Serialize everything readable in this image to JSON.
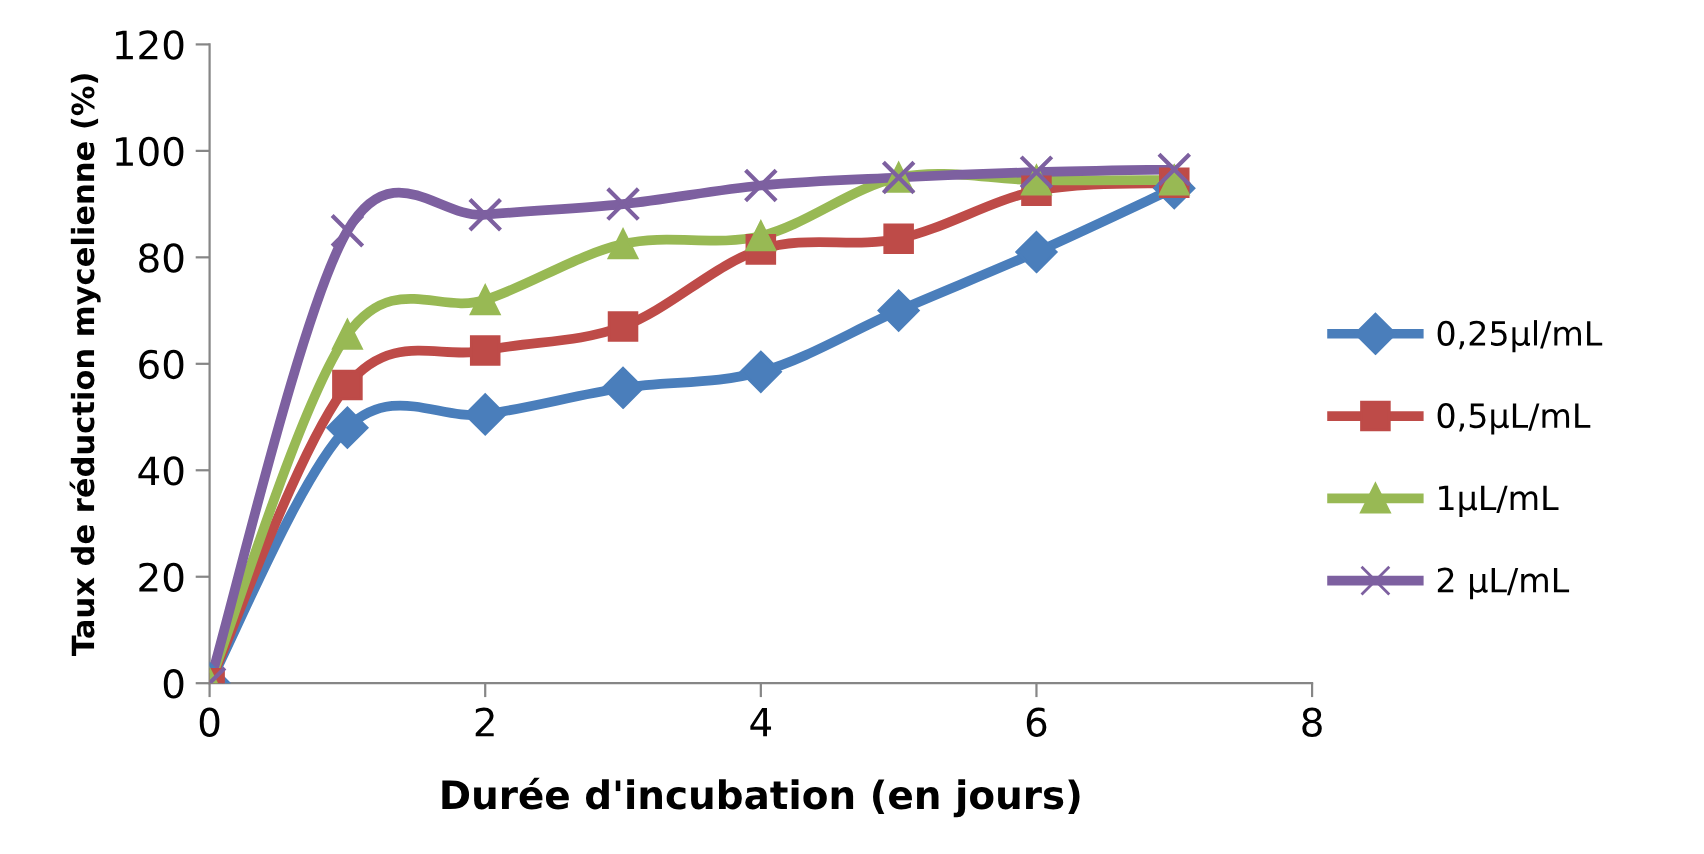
{
  "chart_data": {
    "type": "line",
    "xlabel": "Durée d'incubation (en jours)",
    "ylabel": "Taux de réduction mycelienne (%)",
    "x": [
      0,
      1,
      2,
      3,
      4,
      5,
      6,
      7
    ],
    "series": [
      {
        "name": "0,25µl/mL",
        "color": "#4a7ebb",
        "marker": "diamond",
        "values": [
          0,
          48,
          50.5,
          55.5,
          58.5,
          70,
          81,
          93
        ]
      },
      {
        "name": "0,5µL/mL",
        "color": "#be4b48",
        "marker": "square",
        "values": [
          0,
          56,
          62.5,
          67,
          81.5,
          83.5,
          92.5,
          94
        ]
      },
      {
        "name": "1µL/mL",
        "color": "#98b954",
        "marker": "triangle",
        "values": [
          0,
          65.5,
          72,
          82.5,
          84,
          95,
          94.5,
          94.5
        ]
      },
      {
        "name": "2 µL/mL",
        "color": "#7d60a0",
        "marker": "cross",
        "values": [
          0,
          85,
          88,
          90,
          93.5,
          95,
          96,
          96.5
        ]
      }
    ],
    "xlim": [
      0,
      8
    ],
    "xticks": [
      0,
      2,
      4,
      6,
      8
    ],
    "ylim": [
      0,
      120
    ],
    "yticks": [
      0,
      20,
      40,
      60,
      80,
      100,
      120
    ],
    "line_style": "solid",
    "grid": false,
    "legend": "right"
  }
}
